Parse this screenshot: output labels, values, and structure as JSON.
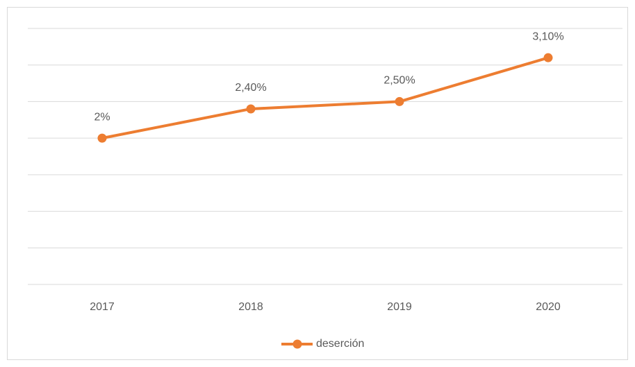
{
  "chart_data": {
    "type": "line",
    "categories": [
      "2017",
      "2018",
      "2019",
      "2020"
    ],
    "series": [
      {
        "name": "deserción",
        "color": "#ed7d31",
        "values": [
          2,
          2.4,
          2.5,
          3.1
        ],
        "value_labels": [
          "2%",
          "2,40%",
          "2,50%",
          "3,10%"
        ]
      }
    ],
    "ylim": [
      0,
      3.5
    ],
    "yticks": [
      0,
      0.5,
      1,
      1.5,
      2,
      2.5,
      3,
      3.5
    ],
    "grid": true,
    "legend": "bottom"
  }
}
